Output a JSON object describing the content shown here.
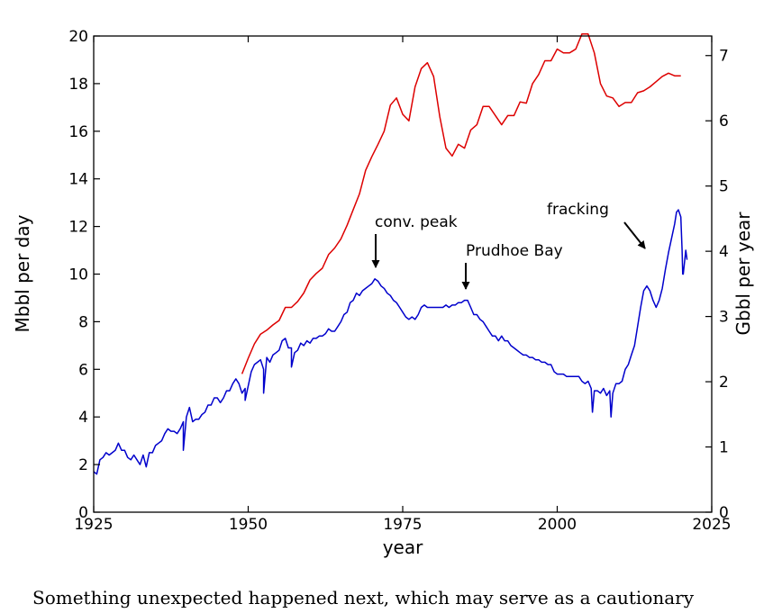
{
  "chart_data": {
    "type": "line",
    "xlabel": "year",
    "ylabel": "Mbbl per day",
    "ylabel_right": "Gbbl per year",
    "xlim": [
      1925,
      2025
    ],
    "ylim": [
      0,
      20
    ],
    "ylim_right": [
      0,
      7.3
    ],
    "xticks": [
      1925,
      1950,
      1975,
      2000,
      2025
    ],
    "yticks": [
      0,
      2,
      4,
      6,
      8,
      10,
      12,
      14,
      16,
      18,
      20
    ],
    "yticks_right": [
      0,
      1,
      2,
      3,
      4,
      5,
      6,
      7
    ],
    "grid": false,
    "series": [
      {
        "color": "#0000cc",
        "axis": "left",
        "x": [
          1925.0,
          1925.5,
          1926.0,
          1926.5,
          1927.0,
          1927.5,
          1928.0,
          1928.5,
          1929.0,
          1929.5,
          1930.0,
          1930.5,
          1931.0,
          1931.5,
          1932.0,
          1932.5,
          1933.0,
          1933.5,
          1934.0,
          1934.5,
          1935.0,
          1935.5,
          1936.0,
          1936.5,
          1937.0,
          1937.5,
          1938.0,
          1938.5,
          1939.0,
          1939.5,
          1940.0,
          1940.5,
          1941.0,
          1941.5,
          1942.0,
          1942.5,
          1943.0,
          1943.5,
          1944.0,
          1944.5,
          1945.0,
          1945.5,
          1946.0,
          1946.5,
          1947.0,
          1947.5,
          1948.0,
          1948.5,
          1949.0,
          1949.5,
          1950.0,
          1950.5,
          1951.0,
          1951.5,
          1952.0,
          1952.5,
          1953.0,
          1953.5,
          1954.0,
          1954.5,
          1955.0,
          1955.5,
          1956.0,
          1956.5,
          1957.0,
          1957.5,
          1958.0,
          1958.5,
          1959.0,
          1959.5,
          1960.0,
          1960.5,
          1961.0,
          1961.5,
          1962.0,
          1962.5,
          1963.0,
          1963.5,
          1964.0,
          1964.5,
          1965.0,
          1965.5,
          1966.0,
          1966.5,
          1967.0,
          1967.5,
          1968.0,
          1968.5,
          1969.0,
          1969.5,
          1970.0,
          1970.5,
          1971.0,
          1971.5,
          1972.0,
          1972.5,
          1973.0,
          1973.5,
          1974.0,
          1974.5,
          1975.0,
          1975.5,
          1976.0,
          1976.5,
          1977.0,
          1977.5,
          1978.0,
          1978.5,
          1979.0,
          1979.5,
          1980.0,
          1980.5,
          1981.0,
          1981.5,
          1982.0,
          1982.5,
          1983.0,
          1983.5,
          1984.0,
          1984.5,
          1985.0,
          1985.5,
          1986.0,
          1986.5,
          1987.0,
          1987.5,
          1988.0,
          1988.5,
          1989.0,
          1989.5,
          1990.0,
          1990.5,
          1991.0,
          1991.5,
          1992.0,
          1992.5,
          1993.0,
          1993.5,
          1994.0,
          1994.5,
          1995.0,
          1995.5,
          1996.0,
          1996.5,
          1997.0,
          1997.5,
          1998.0,
          1998.5,
          1999.0,
          1999.5,
          2000.0,
          2000.5,
          2001.0,
          2001.5,
          2002.0,
          2002.5,
          2003.0,
          2003.5,
          2004.0,
          2004.5,
          2005.0,
          2005.5,
          2006.0,
          2006.5,
          2007.0,
          2007.5,
          2008.0,
          2008.5,
          2009.0,
          2009.5,
          2010.0,
          2010.5,
          2011.0,
          2011.5,
          2012.0,
          2012.5,
          2013.0,
          2013.5,
          2014.0,
          2014.5,
          2015.0,
          2015.5,
          2016.0,
          2016.5,
          2017.0,
          2017.5,
          2018.0,
          2018.5,
          2019.0,
          2019.3,
          2019.6,
          2020.0,
          2020.2,
          2020.4,
          2020.6,
          2020.8,
          2021.0
        ],
        "y": [
          1.7,
          1.6,
          2.2,
          2.3,
          2.5,
          2.4,
          2.5,
          2.6,
          2.9,
          2.6,
          2.6,
          2.3,
          2.2,
          2.4,
          2.2,
          2.0,
          2.4,
          1.9,
          2.5,
          2.5,
          2.8,
          2.9,
          3.0,
          3.3,
          3.5,
          3.4,
          3.4,
          3.3,
          3.5,
          3.8,
          4.0,
          4.4,
          3.8,
          3.9,
          3.9,
          4.1,
          4.2,
          4.5,
          4.5,
          4.8,
          4.8,
          4.6,
          4.8,
          5.1,
          5.1,
          5.4,
          5.6,
          5.4,
          5.0,
          5.2,
          5.3,
          5.9,
          6.2,
          6.3,
          6.4,
          6.0,
          6.5,
          6.3,
          6.6,
          6.7,
          6.8,
          7.2,
          7.3,
          6.9,
          6.9,
          6.7,
          6.8,
          7.1,
          7.0,
          7.2,
          7.1,
          7.3,
          7.3,
          7.4,
          7.4,
          7.5,
          7.7,
          7.6,
          7.6,
          7.8,
          8.0,
          8.3,
          8.4,
          8.8,
          8.9,
          9.2,
          9.1,
          9.3,
          9.4,
          9.5,
          9.6,
          9.8,
          9.7,
          9.5,
          9.4,
          9.2,
          9.1,
          8.9,
          8.8,
          8.6,
          8.4,
          8.2,
          8.1,
          8.2,
          8.1,
          8.3,
          8.6,
          8.7,
          8.6,
          8.6,
          8.6,
          8.6,
          8.6,
          8.6,
          8.7,
          8.6,
          8.7,
          8.7,
          8.8,
          8.8,
          8.9,
          8.9,
          8.6,
          8.3,
          8.3,
          8.1,
          8.0,
          7.8,
          7.6,
          7.4,
          7.4,
          7.2,
          7.4,
          7.2,
          7.2,
          7.0,
          6.9,
          6.8,
          6.7,
          6.6,
          6.6,
          6.5,
          6.5,
          6.4,
          6.4,
          6.3,
          6.3,
          6.2,
          6.2,
          5.9,
          5.8,
          5.8,
          5.8,
          5.7,
          5.7,
          5.7,
          5.7,
          5.7,
          5.5,
          5.4,
          5.5,
          5.2,
          5.1,
          5.1,
          5.0,
          5.2,
          4.9,
          5.1,
          5.0,
          5.4,
          5.4,
          5.5,
          6.0,
          6.2,
          6.6,
          7.0,
          7.8,
          8.6,
          9.3,
          9.5,
          9.3,
          8.9,
          8.6,
          8.9,
          9.4,
          10.2,
          10.9,
          11.5,
          12.1,
          12.6,
          12.7,
          12.4,
          11.0,
          10.0,
          10.5,
          11.0,
          10.6
        ],
        "spikes": [
          [
            1939.5,
            2.6
          ],
          [
            1949.5,
            4.7
          ],
          [
            1952.5,
            5.0
          ],
          [
            1957.0,
            6.1
          ],
          [
            2005.7,
            4.2
          ],
          [
            2008.7,
            4.0
          ],
          [
            2020.3,
            10.0
          ]
        ]
      },
      {
        "color": "#dd0000",
        "axis": "right",
        "x": [
          1949,
          1950,
          1951,
          1952,
          1953,
          1954,
          1955,
          1956,
          1957,
          1958,
          1959,
          1960,
          1961,
          1962,
          1963,
          1964,
          1965,
          1966,
          1967,
          1968,
          1969,
          1970,
          1971,
          1972,
          1973,
          1974,
          1975,
          1976,
          1977,
          1978,
          1979,
          1980,
          1981,
          1982,
          1983,
          1984,
          1985,
          1986,
          1987,
          1988,
          1989,
          1990,
          1991,
          1992,
          1993,
          1994,
          1995,
          1996,
          1997,
          1998,
          1999,
          2000,
          2001,
          2002,
          2003,
          2004,
          2005,
          2006,
          2007,
          2008,
          2009,
          2010,
          2011,
          2012,
          2013,
          2014,
          2015,
          2016,
          2017,
          2018,
          2019,
          2020
        ],
        "y": [
          2.12,
          2.36,
          2.58,
          2.73,
          2.79,
          2.87,
          2.94,
          3.14,
          3.14,
          3.23,
          3.36,
          3.56,
          3.66,
          3.74,
          3.95,
          4.05,
          4.19,
          4.4,
          4.64,
          4.88,
          5.24,
          5.45,
          5.64,
          5.84,
          6.24,
          6.35,
          6.1,
          6.0,
          6.52,
          6.8,
          6.89,
          6.68,
          6.06,
          5.58,
          5.46,
          5.64,
          5.58,
          5.86,
          5.94,
          6.22,
          6.22,
          6.08,
          5.94,
          6.08,
          6.08,
          6.29,
          6.27,
          6.57,
          6.71,
          6.92,
          6.92,
          7.1,
          7.04,
          7.04,
          7.1,
          7.33,
          7.33,
          7.04,
          6.57,
          6.38,
          6.35,
          6.22,
          6.28,
          6.28,
          6.43,
          6.46,
          6.52,
          6.6,
          6.68,
          6.73,
          6.69,
          6.69
        ]
      }
    ],
    "annotations": [
      {
        "text": "conv. peak",
        "arrow_tip": [
          1971,
          10.1
        ]
      },
      {
        "text": "Prudhoe Bay",
        "arrow_tip": [
          1985.5,
          9.2
        ]
      },
      {
        "text": "fracking",
        "arrow_tip": [
          2015,
          10.8
        ]
      }
    ]
  },
  "caption": "Something unexpected happened next, which may serve as a cautionary"
}
